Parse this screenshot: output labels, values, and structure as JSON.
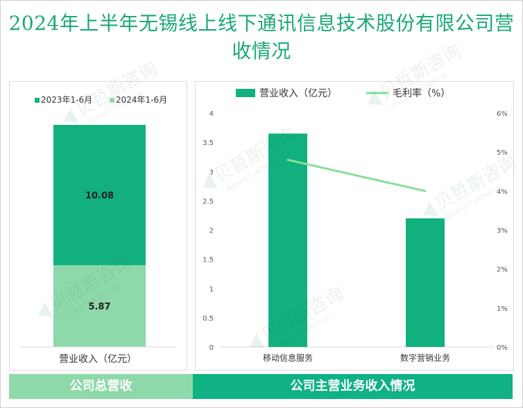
{
  "title": "2024年上半年无锡线上线下通讯信息技术股份有限公司营收情况",
  "colors": {
    "title": "#1aa87a",
    "dark_green": "#12b07f",
    "light_green": "#8ed9a9",
    "line": "#86df98",
    "footer_left": "#8ed9a9",
    "footer_right": "#10b283"
  },
  "watermark": {
    "text_cn": "贝哲斯咨询",
    "text_en": "MARKET MONITOR",
    "icon": "bezhe-logo-icon"
  },
  "footer": {
    "left_label": "公司总营收",
    "right_label": "公司主营业务收入情况"
  },
  "chart_data": [
    {
      "type": "bar",
      "stacked": true,
      "categories": [
        "营业收入（亿元）"
      ],
      "series": [
        {
          "name": "2023年1-6月",
          "values": [
            10.08
          ],
          "color": "#12b07f"
        },
        {
          "name": "2024年1-6月",
          "values": [
            5.87
          ],
          "color": "#8ed9a9"
        }
      ],
      "data_labels": [
        "10.08",
        "5.87"
      ],
      "xlabel": "营业收入（亿元）",
      "legend_position": "top",
      "grid": false
    },
    {
      "type": "bar",
      "categories": [
        "移动信息服务",
        "数字营销业务"
      ],
      "series": [
        {
          "name": "营业收入（亿元）",
          "type": "bar",
          "values": [
            3.65,
            2.2
          ],
          "axis": "left",
          "color": "#12b07f"
        },
        {
          "name": "毛利率（%）",
          "type": "line",
          "values": [
            4.8,
            4.0
          ],
          "axis": "right",
          "color": "#86df98"
        }
      ],
      "y_left": {
        "range": [
          0,
          4
        ],
        "ticks": [
          "0",
          "0.5",
          "1",
          "1.5",
          "2",
          "2.5",
          "3",
          "3.5",
          "4"
        ]
      },
      "y_right": {
        "range": [
          0,
          6
        ],
        "ticks": [
          "0%",
          "1%",
          "2%",
          "3%",
          "4%",
          "5%",
          "6%"
        ]
      },
      "legend_position": "top",
      "grid": false
    }
  ]
}
